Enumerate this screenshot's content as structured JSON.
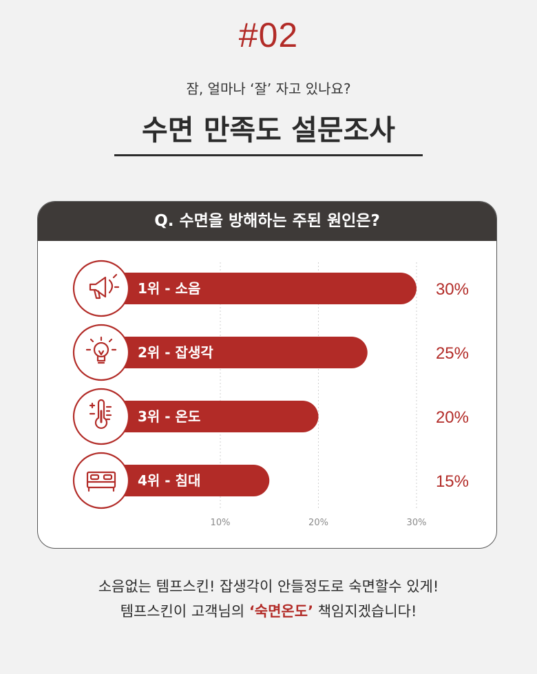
{
  "header": {
    "badge": "#02",
    "subtitle": "잠, 얼마나 ‘잘’ 자고 있나요?",
    "title": "수면 만족도 설문조사"
  },
  "card": {
    "question": "Q. 수면을 방해하는 주된 원인은?"
  },
  "chart_data": {
    "type": "bar",
    "orientation": "horizontal",
    "categories": [
      "1위 - 소음",
      "2위 - 잡생각",
      "3위 - 온도",
      "4위 - 침대"
    ],
    "values": [
      30,
      25,
      20,
      15
    ],
    "value_labels": [
      "30%",
      "25%",
      "20%",
      "15%"
    ],
    "icons": [
      "megaphone-icon",
      "lightbulb-icon",
      "thermometer-icon",
      "bed-icon"
    ],
    "xticks": [
      10,
      20,
      30
    ],
    "xtick_labels": [
      "10%",
      "20%",
      "30%"
    ],
    "xlim": [
      0,
      30
    ],
    "grid": true,
    "bar_color": "#b22b27"
  },
  "footer": {
    "line1": "소음없는 템프스킨! 잡생각이 안들정도로 숙면할수 있게!",
    "line2_pre": "템프스킨이 고객님의 ",
    "line2_highlight": "‘숙면온도’",
    "line2_post": " 책임지겠습니다!"
  },
  "colors": {
    "accent": "#b22b27",
    "header_bg": "#3e3a38",
    "page_bg": "#f2f2f2"
  }
}
